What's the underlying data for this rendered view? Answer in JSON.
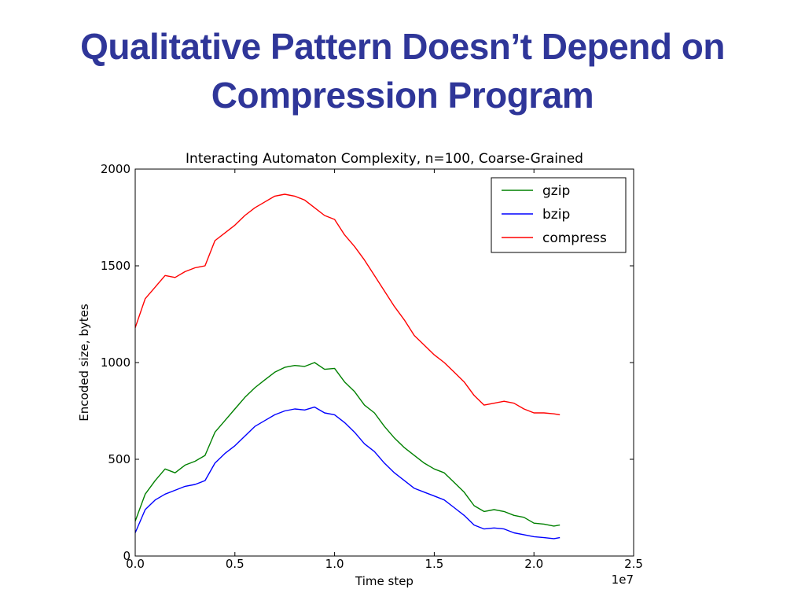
{
  "slide": {
    "title_line1": "Qualitative Pattern Doesn’t Depend on",
    "title_line2": "Compression Program"
  },
  "chart_data": {
    "type": "line",
    "title": "Interacting Automaton Complexity, n=100, Coarse-Grained",
    "xlabel": "Time step",
    "ylabel": "Encoded size, bytes",
    "x_offset_label": "1e7",
    "xlim": [
      0.0,
      2.5
    ],
    "ylim": [
      0,
      2000
    ],
    "x_ticks": [
      0.0,
      0.5,
      1.0,
      1.5,
      2.0,
      2.5
    ],
    "x_tick_labels": [
      "0.0",
      "0.5",
      "1.0",
      "1.5",
      "2.0",
      "2.5"
    ],
    "y_ticks": [
      0,
      500,
      1000,
      1500,
      2000
    ],
    "y_tick_labels": [
      "0",
      "500",
      "1000",
      "1500",
      "2000"
    ],
    "legend_position": "top-right",
    "grid": false,
    "series": [
      {
        "name": "gzip",
        "color": "#008000",
        "x": [
          0.0,
          0.05,
          0.1,
          0.15,
          0.2,
          0.25,
          0.3,
          0.35,
          0.4,
          0.45,
          0.5,
          0.55,
          0.6,
          0.65,
          0.7,
          0.75,
          0.8,
          0.85,
          0.9,
          0.95,
          1.0,
          1.05,
          1.1,
          1.15,
          1.2,
          1.25,
          1.3,
          1.35,
          1.4,
          1.45,
          1.5,
          1.55,
          1.6,
          1.65,
          1.7,
          1.75,
          1.8,
          1.85,
          1.9,
          1.95,
          2.0,
          2.05,
          2.1,
          2.13
        ],
        "values": [
          180,
          320,
          390,
          450,
          430,
          470,
          490,
          520,
          640,
          700,
          760,
          820,
          870,
          910,
          950,
          975,
          985,
          980,
          1000,
          965,
          970,
          900,
          850,
          780,
          740,
          670,
          610,
          560,
          520,
          480,
          450,
          430,
          380,
          330,
          260,
          230,
          240,
          230,
          210,
          200,
          170,
          165,
          155,
          160
        ]
      },
      {
        "name": "bzip",
        "color": "#0000ff",
        "x": [
          0.0,
          0.05,
          0.1,
          0.15,
          0.2,
          0.25,
          0.3,
          0.35,
          0.4,
          0.45,
          0.5,
          0.55,
          0.6,
          0.65,
          0.7,
          0.75,
          0.8,
          0.85,
          0.9,
          0.95,
          1.0,
          1.05,
          1.1,
          1.15,
          1.2,
          1.25,
          1.3,
          1.35,
          1.4,
          1.45,
          1.5,
          1.55,
          1.6,
          1.65,
          1.7,
          1.75,
          1.8,
          1.85,
          1.9,
          1.95,
          2.0,
          2.05,
          2.1,
          2.13
        ],
        "values": [
          120,
          240,
          290,
          320,
          340,
          360,
          370,
          390,
          480,
          530,
          570,
          620,
          670,
          700,
          730,
          750,
          760,
          755,
          770,
          740,
          730,
          690,
          640,
          580,
          540,
          480,
          430,
          390,
          350,
          330,
          310,
          290,
          250,
          210,
          160,
          140,
          145,
          140,
          120,
          110,
          100,
          95,
          90,
          95
        ]
      },
      {
        "name": "compress",
        "color": "#ff0000",
        "x": [
          0.0,
          0.05,
          0.1,
          0.15,
          0.2,
          0.25,
          0.3,
          0.35,
          0.4,
          0.45,
          0.5,
          0.55,
          0.6,
          0.65,
          0.7,
          0.75,
          0.8,
          0.85,
          0.9,
          0.95,
          1.0,
          1.05,
          1.1,
          1.15,
          1.2,
          1.25,
          1.3,
          1.35,
          1.4,
          1.45,
          1.5,
          1.55,
          1.6,
          1.65,
          1.7,
          1.75,
          1.8,
          1.85,
          1.9,
          1.95,
          2.0,
          2.05,
          2.1,
          2.13
        ],
        "values": [
          1180,
          1330,
          1390,
          1450,
          1440,
          1470,
          1490,
          1500,
          1630,
          1670,
          1710,
          1760,
          1800,
          1830,
          1860,
          1870,
          1860,
          1840,
          1800,
          1760,
          1740,
          1660,
          1600,
          1530,
          1450,
          1370,
          1290,
          1220,
          1140,
          1090,
          1040,
          1000,
          950,
          900,
          830,
          780,
          790,
          800,
          790,
          760,
          740,
          740,
          735,
          730
        ]
      }
    ]
  }
}
